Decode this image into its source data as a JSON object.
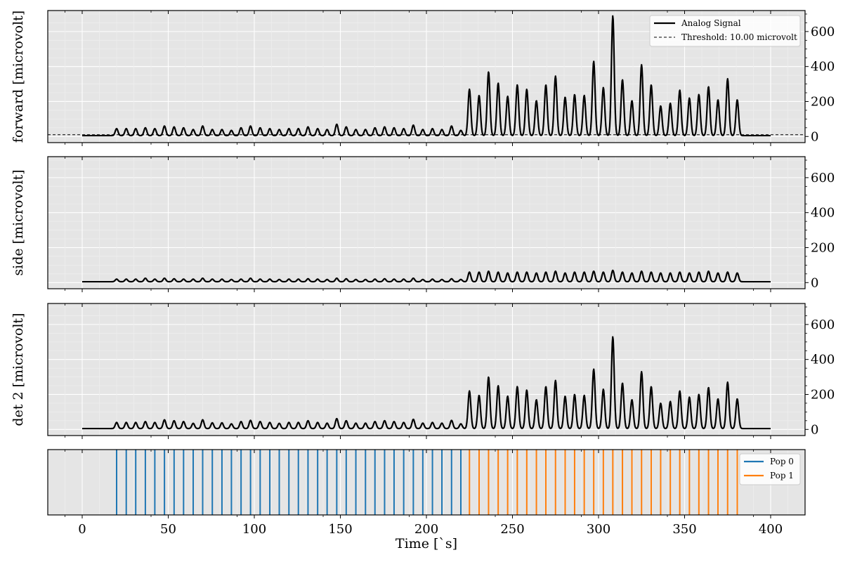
{
  "chart_data": {
    "type": "line",
    "x_axis": {
      "label": "Time [`s]",
      "xlim": [
        -20,
        420
      ],
      "ticks": [
        0,
        50,
        100,
        150,
        200,
        250,
        300,
        350,
        400
      ]
    },
    "time_range": [
      0,
      400
    ],
    "peak_width_s": 0.8,
    "grid": true,
    "peaks": {
      "times": [
        20,
        25.6,
        31.1,
        36.7,
        42.2,
        47.8,
        53.4,
        58.9,
        64.5,
        70.0,
        75.6,
        81.2,
        86.7,
        92.3,
        97.8,
        103.4,
        109.0,
        114.5,
        120.1,
        125.6,
        131.2,
        136.8,
        142.3,
        147.9,
        153.4,
        159.0,
        164.6,
        170.1,
        175.7,
        181.2,
        186.8,
        192.4,
        197.9,
        203.5,
        209.0,
        214.6,
        220.0,
        225,
        230.6,
        236.1,
        241.7,
        247.2,
        252.8,
        258.3,
        263.9,
        269.4,
        275.0,
        280.6,
        286.1,
        291.7,
        297.2,
        302.8,
        308.3,
        313.9,
        319.4,
        325.0,
        330.6,
        336.1,
        341.7,
        347.2,
        352.8,
        358.3,
        363.9,
        369.4,
        375.0,
        380.6
      ],
      "population": [
        0,
        0,
        0,
        0,
        0,
        0,
        0,
        0,
        0,
        0,
        0,
        0,
        0,
        0,
        0,
        0,
        0,
        0,
        0,
        0,
        0,
        0,
        0,
        0,
        0,
        0,
        0,
        0,
        0,
        0,
        0,
        0,
        0,
        0,
        0,
        0,
        0,
        1,
        1,
        1,
        1,
        1,
        1,
        1,
        1,
        1,
        1,
        1,
        1,
        1,
        1,
        1,
        1,
        1,
        1,
        1,
        1,
        1,
        1,
        1,
        1,
        1,
        1,
        1,
        1,
        1
      ]
    },
    "panels": [
      {
        "ylabel": "forward [microvolt]",
        "ylim": [
          -35,
          720
        ],
        "yticks": [
          0,
          200,
          400,
          600
        ],
        "baseline": 5,
        "threshold": 10.0,
        "legend": {
          "position": "upper right",
          "entries": [
            "Analog Signal",
            "Threshold: 10.00 microvolt"
          ]
        },
        "peak_values": [
          45,
          45,
          45,
          50,
          45,
          60,
          55,
          50,
          40,
          60,
          40,
          40,
          35,
          50,
          60,
          50,
          45,
          40,
          45,
          45,
          55,
          45,
          40,
          70,
          55,
          40,
          40,
          50,
          55,
          50,
          45,
          65,
          40,
          45,
          40,
          60,
          35,
          270,
          235,
          370,
          305,
          230,
          295,
          270,
          205,
          295,
          345,
          225,
          240,
          235,
          430,
          280,
          690,
          325,
          205,
          410,
          295,
          175,
          190,
          265,
          220,
          240,
          285,
          210,
          330,
          210
        ]
      },
      {
        "ylabel": "side [microvolt]",
        "ylim": [
          -35,
          720
        ],
        "yticks": [
          0,
          200,
          400,
          600
        ],
        "baseline": 5,
        "peak_values": [
          20,
          20,
          20,
          25,
          20,
          25,
          22,
          20,
          20,
          25,
          20,
          20,
          18,
          20,
          25,
          20,
          20,
          18,
          20,
          20,
          22,
          20,
          18,
          25,
          22,
          18,
          18,
          20,
          22,
          20,
          20,
          25,
          18,
          20,
          18,
          22,
          18,
          60,
          60,
          65,
          60,
          55,
          60,
          60,
          55,
          60,
          65,
          55,
          60,
          60,
          65,
          60,
          70,
          60,
          55,
          65,
          60,
          55,
          55,
          60,
          55,
          60,
          65,
          55,
          60,
          55
        ]
      },
      {
        "ylabel": "det 2 [microvolt]",
        "ylim": [
          -35,
          720
        ],
        "yticks": [
          0,
          200,
          400,
          600
        ],
        "baseline": 5,
        "peak_values": [
          40,
          40,
          40,
          45,
          40,
          55,
          50,
          45,
          35,
          55,
          38,
          38,
          32,
          45,
          52,
          45,
          40,
          35,
          40,
          40,
          50,
          40,
          36,
          62,
          50,
          36,
          36,
          45,
          50,
          45,
          40,
          58,
          36,
          40,
          36,
          52,
          32,
          220,
          195,
          300,
          250,
          190,
          245,
          225,
          170,
          245,
          280,
          190,
          200,
          195,
          345,
          230,
          530,
          265,
          170,
          330,
          245,
          150,
          160,
          220,
          185,
          200,
          240,
          175,
          270,
          175
        ]
      }
    ],
    "event_panel": {
      "legend": {
        "position": "upper right",
        "entries": [
          {
            "name": "Pop 0",
            "color": "#1f77b4"
          },
          {
            "name": "Pop 1",
            "color": "#ff7f0e"
          }
        ]
      }
    },
    "colors": {
      "axes_bg": "#e5e5e5",
      "grid_major": "#ffffff",
      "grid_minor": "#eeeeee",
      "signal": "#000000",
      "threshold": "#000000",
      "pop0": "#1f77b4",
      "pop1": "#ff7f0e"
    }
  }
}
